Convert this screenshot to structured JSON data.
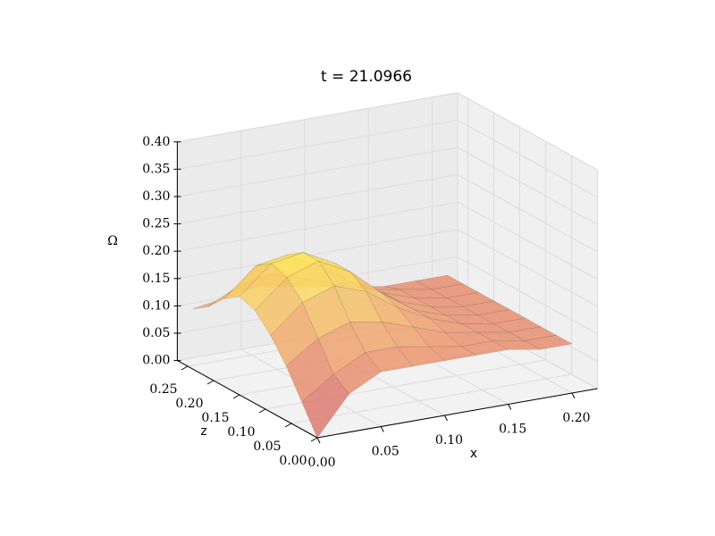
{
  "chart_data": {
    "type": "surface",
    "title": "t = 21.0966",
    "xlabel": "x",
    "ylabel": "z",
    "zlabel": "Ω",
    "xlim": [
      0,
      0.22
    ],
    "ylim": [
      0,
      0.27
    ],
    "zlim": [
      0,
      0.4
    ],
    "xticks": [
      {
        "value": 0,
        "label": "0.00"
      },
      {
        "value": 0.05,
        "label": "0.05"
      },
      {
        "value": 0.1,
        "label": "0.10"
      },
      {
        "value": 0.15,
        "label": "0.15"
      },
      {
        "value": 0.2,
        "label": "0.20"
      }
    ],
    "yticks": [
      {
        "value": 0,
        "label": "0.00"
      },
      {
        "value": 0.05,
        "label": "0.05"
      },
      {
        "value": 0.1,
        "label": "0.10"
      },
      {
        "value": 0.15,
        "label": "0.15"
      },
      {
        "value": 0.2,
        "label": "0.20"
      },
      {
        "value": 0.25,
        "label": "0.25"
      }
    ],
    "zticks": [
      {
        "value": 0,
        "label": "0.00"
      },
      {
        "value": 0.05,
        "label": "0.05"
      },
      {
        "value": 0.1,
        "label": "0.10"
      },
      {
        "value": 0.15,
        "label": "0.15"
      },
      {
        "value": 0.2,
        "label": "0.20"
      },
      {
        "value": 0.25,
        "label": "0.25"
      },
      {
        "value": 0.3,
        "label": "0.30"
      },
      {
        "value": 0.35,
        "label": "0.35"
      },
      {
        "value": 0.4,
        "label": "0.40"
      }
    ],
    "grid": true,
    "colormap": [
      "#d06070",
      "#f0a070",
      "#fff060"
    ],
    "x": [
      0,
      0.025,
      0.05,
      0.075,
      0.1,
      0.125,
      0.15,
      0.175,
      0.2
    ],
    "y": [
      0,
      0.03,
      0.06,
      0.09,
      0.12,
      0.15,
      0.18,
      0.21,
      0.24
    ],
    "values": [
      [
        0.0,
        0.07,
        0.1,
        0.1,
        0.1,
        0.1,
        0.1,
        0.09,
        0.09
      ],
      [
        0.05,
        0.09,
        0.12,
        0.12,
        0.11,
        0.1,
        0.1,
        0.09,
        0.09
      ],
      [
        0.1,
        0.14,
        0.16,
        0.15,
        0.13,
        0.11,
        0.1,
        0.09,
        0.09
      ],
      [
        0.14,
        0.19,
        0.21,
        0.19,
        0.15,
        0.12,
        0.1,
        0.09,
        0.09
      ],
      [
        0.17,
        0.22,
        0.24,
        0.21,
        0.16,
        0.12,
        0.1,
        0.09,
        0.09
      ],
      [
        0.18,
        0.23,
        0.24,
        0.21,
        0.16,
        0.12,
        0.1,
        0.09,
        0.09
      ],
      [
        0.16,
        0.21,
        0.22,
        0.19,
        0.15,
        0.12,
        0.1,
        0.09,
        0.09
      ],
      [
        0.13,
        0.16,
        0.17,
        0.15,
        0.13,
        0.11,
        0.1,
        0.09,
        0.09
      ],
      [
        0.11,
        0.12,
        0.13,
        0.12,
        0.11,
        0.1,
        0.09,
        0.09,
        0.09
      ]
    ]
  }
}
